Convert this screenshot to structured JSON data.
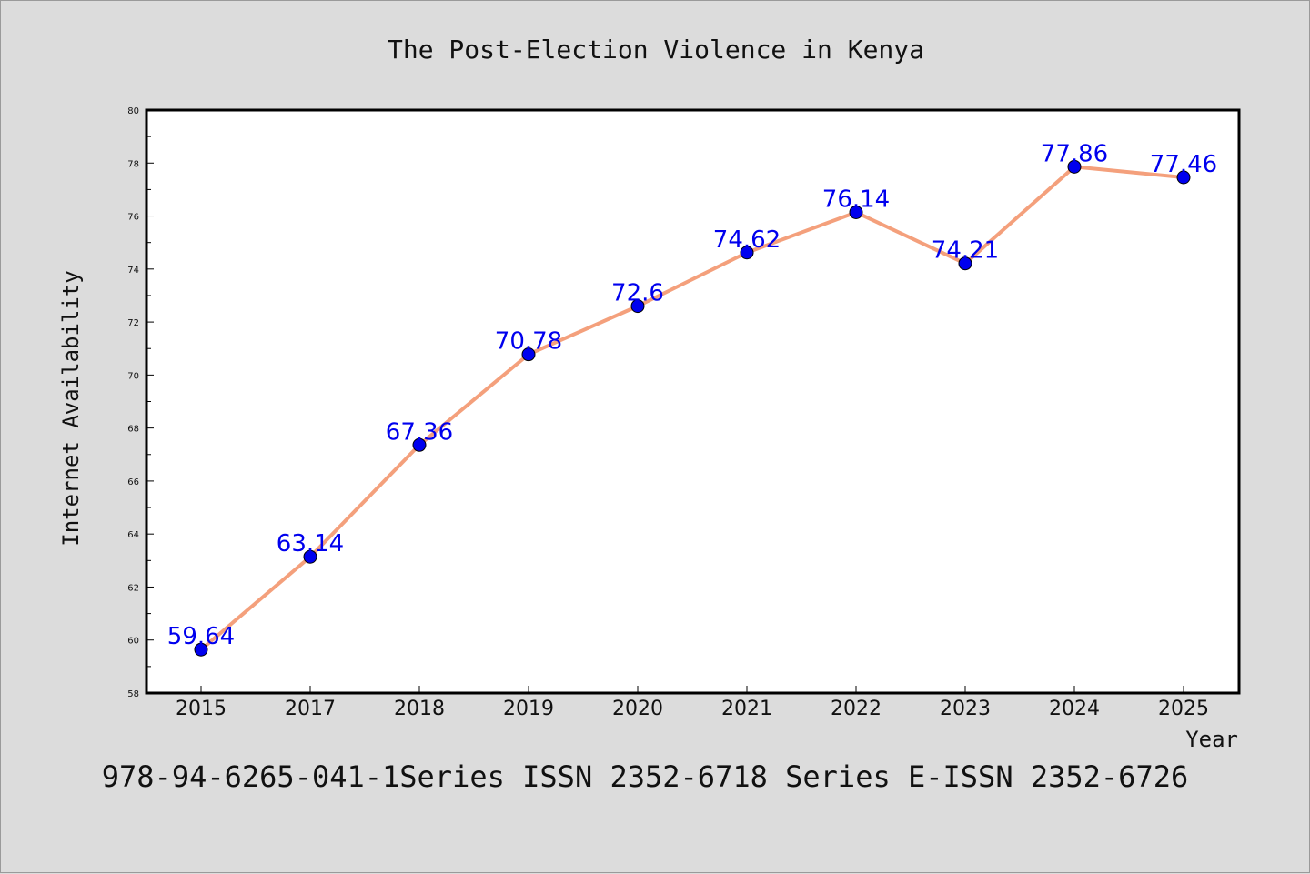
{
  "chart_data": {
    "type": "line",
    "title": "The Post-Election Violence in Kenya",
    "xlabel": "Year",
    "ylabel": "Internet Availability",
    "categories": [
      "2015",
      "2017",
      "2018",
      "2019",
      "2020",
      "2021",
      "2022",
      "2023",
      "2024",
      "2025"
    ],
    "series": [
      {
        "values": [
          59.64,
          63.14,
          67.36,
          70.78,
          72.6,
          74.62,
          76.14,
          74.21,
          77.86,
          77.46
        ],
        "labels": [
          "59.64",
          "63.14",
          "67.36",
          "70.78",
          "72.6",
          "74.62",
          "76.14",
          "74.21",
          "77.86",
          "77.46"
        ],
        "line_color": "#f4a07c",
        "marker_color": "#0000ee"
      }
    ],
    "ylim": [
      58,
      80
    ],
    "yticks": [
      "58",
      "60",
      "62",
      "64",
      "66",
      "68",
      "70",
      "72",
      "74",
      "76",
      "78",
      "80"
    ],
    "grid": false,
    "legend": false
  },
  "footer": "978-94-6265-041-1Series ISSN 2352-6718 Series E-ISSN 2352-6726",
  "colors": {
    "background": "#dcdcdc",
    "plot_area": "#ffffff",
    "axis": "#000000"
  }
}
